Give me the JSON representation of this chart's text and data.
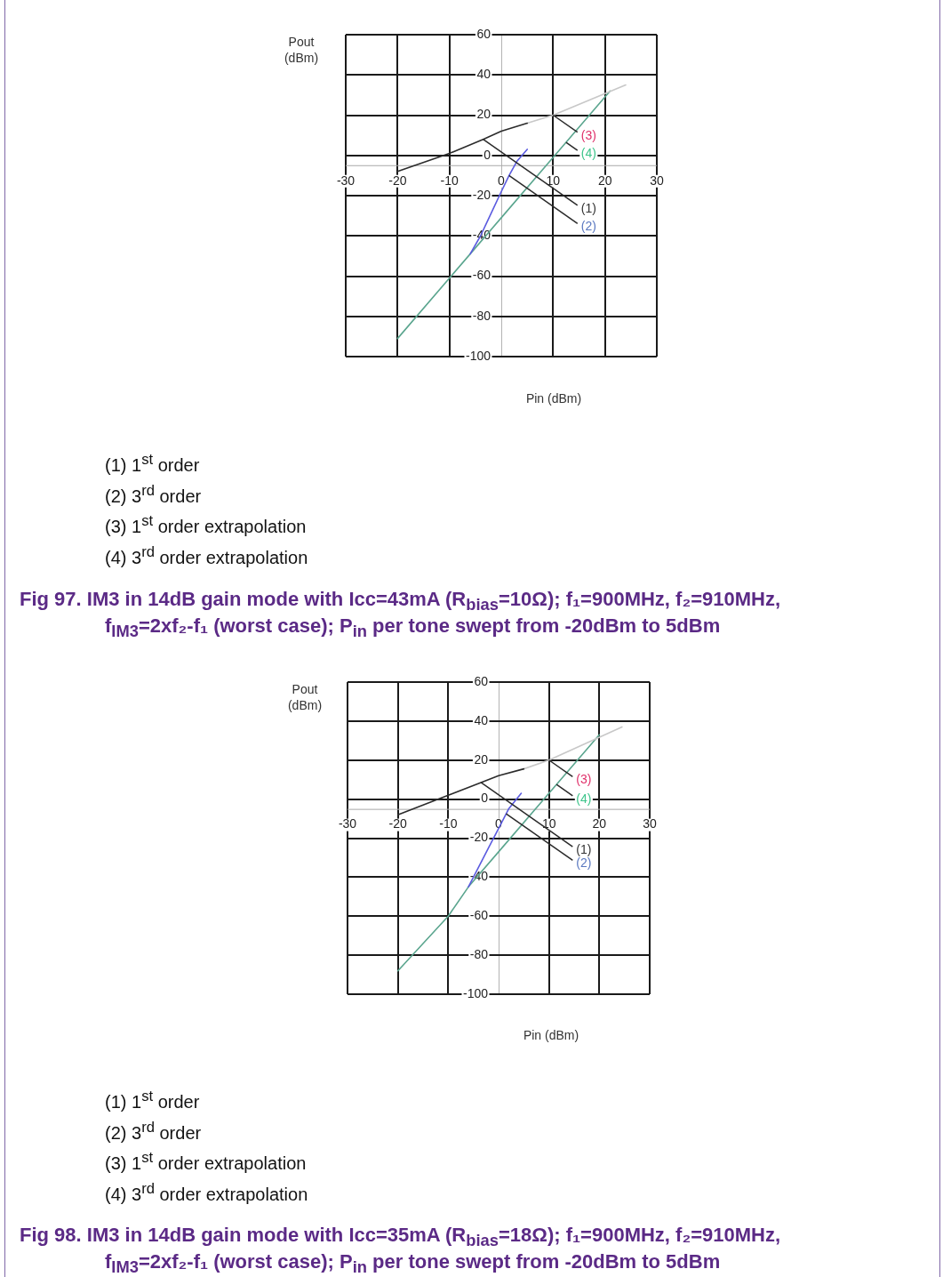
{
  "chart_data": [
    {
      "type": "line",
      "title": "Fig 97. IM3 in 14dB gain mode with Icc=43mA (R$_{bias}$=10Ω); f₁=900MHz, f₂=910MHz, f$_{IM3}$=2xf₂-f₁ (worst case); P$_{in}$ per tone swept from -20dBm to 5dBm",
      "xlabel": "Pin (dBm)",
      "ylabel": "Pout (dBm)",
      "xlim": [
        -30,
        30
      ],
      "ylim": [
        -100,
        60
      ],
      "xticks": [
        -30,
        -20,
        -10,
        0,
        10,
        20,
        30
      ],
      "yticks": [
        -100,
        -80,
        -60,
        -40,
        -20,
        0,
        20,
        40,
        60
      ],
      "grid": true,
      "series": [
        {
          "color": "#2b2b2b",
          "x": [
            -20,
            -10,
            -3.5,
            0,
            5
          ],
          "values": [
            -8,
            1,
            8,
            12,
            16
          ]
        },
        {
          "color": "#5b5be0",
          "x": [
            -6,
            -4,
            -2,
            0,
            1.5,
            3,
            5
          ],
          "values": [
            -49,
            -40,
            -29,
            -18,
            -10,
            -3,
            3
          ]
        },
        {
          "color": "#c8c8c8",
          "x": [
            5,
            10,
            24
          ],
          "values": [
            16,
            20,
            35
          ]
        },
        {
          "color": "#5aa58e",
          "x": [
            -20,
            -10,
            -6,
            0,
            10,
            21
          ],
          "values": [
            -91,
            -61,
            -49,
            -31,
            -1,
            32
          ]
        }
      ],
      "annotations": [
        {
          "text": "(1)",
          "x": -3.5,
          "y": 8
        },
        {
          "text": "(2)",
          "x": 1.5,
          "y": -10
        },
        {
          "text": "(3)",
          "x": 10,
          "y": 20
        },
        {
          "text": "(4)",
          "x": 12.5,
          "y": 6.5
        },
        "(1) 1$^{st}$ order",
        "(2) 3$^{rd}$ order",
        "(3) 1$^{st}$ order extrapolation",
        "(4) 3$^{rd}$ order extrapolation"
      ]
    },
    {
      "type": "line",
      "title": "Fig 98. IM3 in 14dB gain mode with Icc=35mA (R$_{bias}$=18Ω); f₁=900MHz, f₂=910MHz, f$_{IM3}$=2xf₂-f₁ (worst case); P$_{in}$ per tone swept from -20dBm to 5dBm",
      "xlabel": "Pin (dBm)",
      "ylabel": "Pout (dBm)",
      "xlim": [
        -30,
        30
      ],
      "ylim": [
        -100,
        60
      ],
      "xticks": [
        -30,
        -20,
        -10,
        0,
        10,
        20,
        30
      ],
      "yticks": [
        -100,
        -80,
        -60,
        -40,
        -20,
        0,
        20,
        40,
        60
      ],
      "grid": true,
      "series": [
        {
          "color": "#2b2b2b",
          "x": [
            -20,
            -10,
            -3.5,
            0,
            5
          ],
          "values": [
            -8,
            2,
            8.5,
            12,
            15.5
          ]
        },
        {
          "color": "#5b5be0",
          "x": [
            -6,
            -5,
            -2,
            0,
            2,
            4.5
          ],
          "values": [
            -45,
            -40,
            -25,
            -15,
            -5,
            3
          ]
        },
        {
          "color": "#c8c8c8",
          "x": [
            5,
            10,
            24.5
          ],
          "values": [
            15.5,
            20,
            37
          ]
        },
        {
          "color": "#5aa58e",
          "x": [
            -20,
            -10,
            -6,
            0,
            10,
            20
          ],
          "values": [
            -88,
            -60,
            -45,
            -27,
            3,
            33
          ]
        }
      ],
      "annotations": [
        {
          "text": "(1)",
          "x": -3.5,
          "y": 8.5
        },
        {
          "text": "(2)",
          "x": 1.5,
          "y": -7.5
        },
        {
          "text": "(3)",
          "x": 10,
          "y": 20
        },
        {
          "text": "(4)",
          "x": 11.5,
          "y": 7.5
        },
        "(1) 1$^{st}$ order",
        "(2) 3$^{rd}$ order",
        "(3) 1$^{st}$ order extrapolation",
        "(4) 3$^{rd}$ order extrapolation"
      ]
    }
  ]
}
